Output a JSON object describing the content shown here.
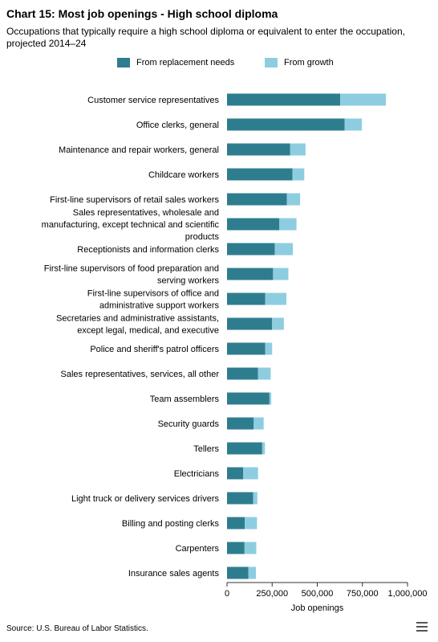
{
  "header": {
    "title": "Chart 15: Most job openings - High school diploma",
    "subtitle": "Occupations that typically require a high school diploma or equivalent to enter the occupation, projected 2014–24"
  },
  "footer": {
    "source": "Source: U.S. Bureau of Labor Statistics."
  },
  "menu": {
    "icon": "hamburger-menu-icon"
  },
  "colors": {
    "replacement": "#2e7d8f",
    "growth": "#8ecde0",
    "axis": "#333333"
  },
  "chart_data": {
    "type": "bar",
    "orientation": "horizontal",
    "stacked": true,
    "title": "Chart 15: Most job openings - High school diploma",
    "xlabel": "Job openings",
    "ylabel": "",
    "xlim": [
      0,
      1000000
    ],
    "xticks": [
      0,
      250000,
      500000,
      750000,
      1000000
    ],
    "xtick_labels": [
      "0",
      "250,000",
      "500,000",
      "750,000",
      "1,000,000"
    ],
    "grid": false,
    "legend_position": "top",
    "categories": [
      [
        "Customer service representatives"
      ],
      [
        "Office clerks, general"
      ],
      [
        "Maintenance and repair workers, general"
      ],
      [
        "Childcare workers"
      ],
      [
        "First-line supervisors of retail sales workers"
      ],
      [
        "Sales representatives, wholesale and",
        "manufacturing, except technical and scientific",
        "products"
      ],
      [
        "Receptionists and information clerks"
      ],
      [
        "First-line supervisors of food preparation and",
        "serving workers"
      ],
      [
        "First-line supervisors of office and",
        "administrative support workers"
      ],
      [
        "Secretaries and administrative assistants,",
        "except legal, medical, and executive"
      ],
      [
        "Police and sheriff's patrol officers"
      ],
      [
        "Sales representatives, services, all other"
      ],
      [
        "Team assemblers"
      ],
      [
        "Security guards"
      ],
      [
        "Tellers"
      ],
      [
        "Electricians"
      ],
      [
        "Light truck or delivery services drivers"
      ],
      [
        "Billing and posting clerks"
      ],
      [
        "Carpenters"
      ],
      [
        "Insurance sales agents"
      ]
    ],
    "series": [
      {
        "name": "From replacement needs",
        "values": [
          627000,
          652000,
          350000,
          363000,
          332000,
          290000,
          265000,
          255000,
          212000,
          250000,
          212000,
          172000,
          235000,
          148000,
          195000,
          90000,
          145000,
          98000,
          97000,
          118000
        ]
      },
      {
        "name": "From growth",
        "values": [
          253000,
          95000,
          85000,
          65000,
          73000,
          95000,
          100000,
          85000,
          117000,
          65000,
          38000,
          70000,
          10000,
          55000,
          15000,
          82000,
          23000,
          68000,
          65000,
          42000
        ]
      }
    ]
  }
}
